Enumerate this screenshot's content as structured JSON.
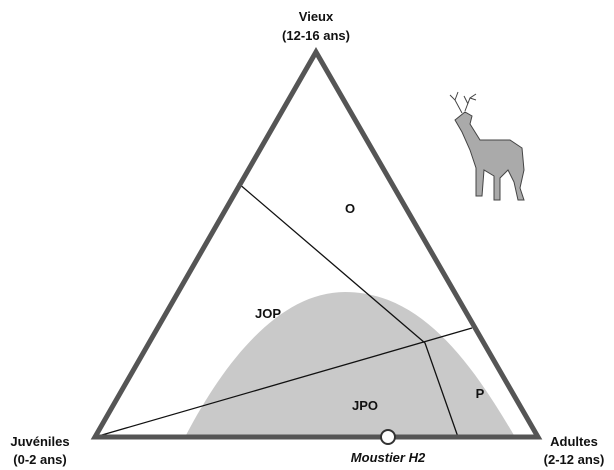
{
  "vertices": [
    {
      "label": "Vieux",
      "sublabel": "(12-16 ans)"
    },
    {
      "label": "Juvéniles",
      "sublabel": "(0-2 ans)"
    },
    {
      "label": "Adultes",
      "sublabel": "(2-12 ans)"
    }
  ],
  "zones": [
    "O",
    "JOP",
    "JPO",
    "P"
  ],
  "point": {
    "label": "Moustier H2"
  }
}
